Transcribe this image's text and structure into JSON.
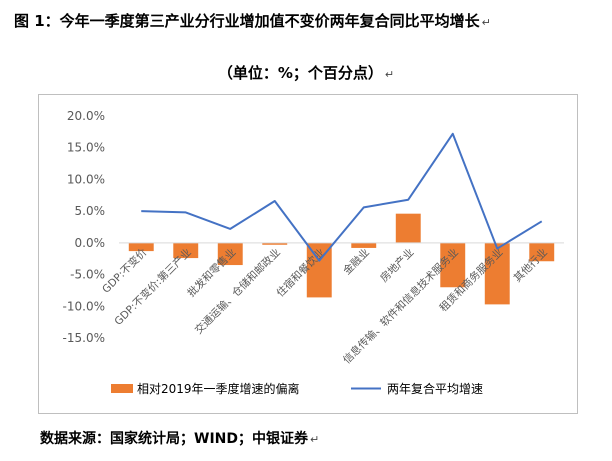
{
  "header": {
    "title": "图 1：今年一季度第三产业分行业增加值不变价两年复合同比平均增长",
    "subtitle": "（单位：%；个百分点）",
    "para_mark": "↵"
  },
  "footer": {
    "source": "数据来源：国家统计局；WIND；中银证券"
  },
  "chart_data": {
    "type": "bar",
    "categories": [
      "GDP:不变价",
      "GDP:不变价:第三产业",
      "批发和零售业",
      "交通运输、仓储和邮政业",
      "住宿和餐饮业",
      "金融业",
      "房地产业",
      "信息传输、软件和信息技术服务业",
      "租赁和商务服务业",
      "其他行业"
    ],
    "series": [
      {
        "name": "相对2019年一季度增速的偏离",
        "type": "bar",
        "color": "#ED7D31",
        "values": [
          -1.3,
          -2.4,
          -3.5,
          -0.3,
          -8.6,
          -0.8,
          4.6,
          -7.0,
          -9.7,
          -2.9
        ]
      },
      {
        "name": "两年复合平均增速",
        "type": "line",
        "color": "#4472C4",
        "values": [
          5.0,
          4.8,
          2.2,
          6.6,
          -2.8,
          5.6,
          6.8,
          17.2,
          -0.9,
          3.4
        ]
      }
    ],
    "yticks": [
      "20.0%",
      "15.0%",
      "10.0%",
      "5.0%",
      "0.0%",
      "-5.0%",
      "-10.0%",
      "-15.0%"
    ],
    "ylim": [
      -15,
      20
    ],
    "grid": false,
    "legend": "bottom"
  }
}
